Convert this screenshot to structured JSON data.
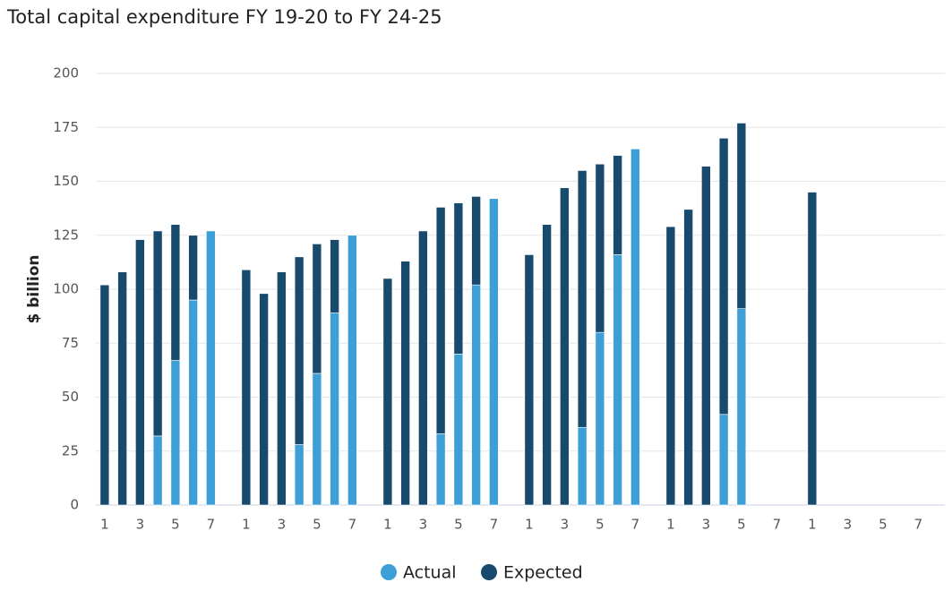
{
  "chart_data": {
    "type": "stacked-bar",
    "title": "Total capital expenditure FY 19-20 to FY 24-25",
    "y_label": "$ billion",
    "categories": [
      "1",
      null,
      "3",
      null,
      "5",
      null,
      "7",
      null,
      "1",
      null,
      "3",
      null,
      "5",
      null,
      "7",
      null,
      "1",
      null,
      "3",
      null,
      "5",
      null,
      "7",
      null,
      "1",
      null,
      "3",
      null,
      "5",
      null,
      "7",
      null,
      "1",
      null,
      "3",
      null,
      "5",
      null,
      "7",
      null,
      "1",
      null,
      "3",
      null,
      "5",
      null,
      "7"
    ],
    "series": [
      {
        "name": "Actual",
        "color": "#3d9fd6",
        "values": [
          null,
          null,
          null,
          32,
          67,
          95,
          127,
          null,
          null,
          null,
          null,
          28,
          61,
          89,
          125,
          null,
          null,
          null,
          null,
          33,
          70,
          102,
          142,
          null,
          null,
          null,
          null,
          36,
          80,
          116,
          165,
          null,
          null,
          null,
          null,
          42,
          91,
          null,
          null,
          null,
          null,
          null,
          null,
          null,
          null,
          null,
          null
        ]
      },
      {
        "name": "Expected",
        "color": "#184a6e",
        "values": [
          102,
          108,
          123,
          95,
          63,
          30,
          null,
          null,
          109,
          98,
          108,
          87,
          60,
          34,
          null,
          null,
          105,
          113,
          127,
          105,
          70,
          41,
          null,
          null,
          116,
          130,
          147,
          119,
          78,
          46,
          null,
          null,
          129,
          137,
          157,
          128,
          86,
          null,
          null,
          null,
          145,
          null,
          null,
          null,
          null,
          null,
          null
        ]
      }
    ],
    "ylim": [
      0,
      200
    ],
    "yticks": [
      0,
      25,
      50,
      75,
      100,
      125,
      150,
      175,
      200
    ],
    "grid": true,
    "legend": "bottom"
  }
}
